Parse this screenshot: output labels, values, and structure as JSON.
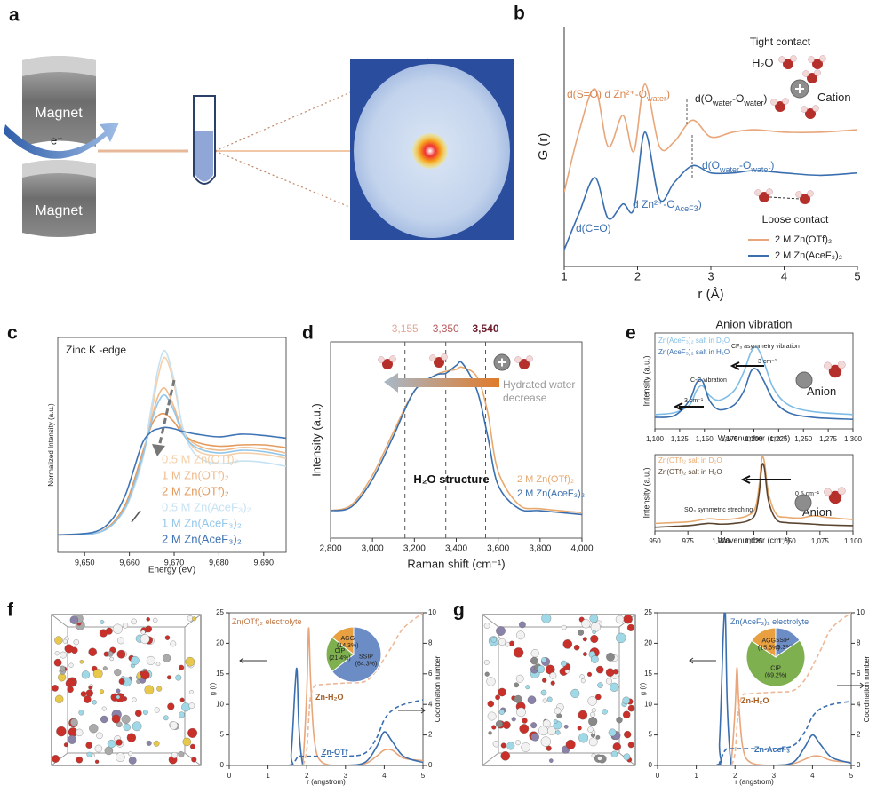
{
  "panel_labels": [
    "a",
    "b",
    "c",
    "d",
    "e",
    "f",
    "g"
  ],
  "panel_a": {
    "magnet_top": "Magnet",
    "magnet_bottom": "Magnet",
    "electron": "e⁻"
  },
  "chart_data": [
    {
      "type": "line",
      "xlabel": "r (Å)",
      "ylabel": "G (r)",
      "x": [
        1.0,
        1.2,
        1.42,
        1.6,
        1.8,
        1.95,
        2.1,
        2.3,
        2.5,
        2.75,
        3.0,
        3.3,
        3.6,
        4.0,
        4.5,
        5.0
      ],
      "xlim": [
        1,
        5
      ],
      "xticks": [
        1,
        2,
        3,
        4,
        5
      ],
      "ylim": [
        0,
        10
      ],
      "legend": {
        "loc": "lower right",
        "style": "line"
      },
      "series": [
        {
          "name": "2 M Zn(OTf)₂",
          "color": "#e8a67a",
          "values": [
            3.1,
            5.6,
            7.4,
            5.0,
            6.3,
            4.8,
            7.6,
            5.0,
            5.2,
            6.1,
            5.4,
            5.6,
            5.7,
            5.6,
            5.6,
            5.7
          ]
        },
        {
          "name": "2 M Zn(AceF₃)₂",
          "color": "#3a6faf",
          "values": [
            0.7,
            2.2,
            3.7,
            2.0,
            2.6,
            2.4,
            5.6,
            2.8,
            3.5,
            4.2,
            3.9,
            3.9,
            4.0,
            3.9,
            3.8,
            3.9
          ]
        }
      ],
      "annotations": [
        [
          "Tight contact"
        ],
        [
          "H₂O"
        ],
        [
          "Cation"
        ],
        [
          "d(S=O)  d  Zn²⁺-O",
          "water",
          ")"
        ],
        [
          "d(O",
          "water",
          "-O",
          "water",
          ")"
        ],
        [
          "d(O",
          "water",
          "-O",
          "water",
          ")"
        ],
        [
          "d  Zn²⁺-O",
          "AceF3",
          ")"
        ],
        [
          "d(C=O)"
        ],
        [
          "Loose contact"
        ]
      ]
    },
    {
      "type": "line",
      "xlabel": "Energy (eV)",
      "ylabel": "Normalized Intensity (a.u.)",
      "x": [
        9644,
        9652,
        9656,
        9659,
        9661,
        9663,
        9665,
        9666.5,
        9668,
        9670,
        9672,
        9675,
        9680,
        9685,
        9690,
        9695
      ],
      "xlim": [
        9644,
        9695
      ],
      "xticks": [
        {
          "value": 9650,
          "label": "9,650"
        },
        {
          "value": 9660,
          "label": "9,660"
        },
        {
          "value": 9670,
          "label": "9,670"
        },
        {
          "value": 9680,
          "label": "9,680"
        },
        {
          "value": 9690,
          "label": "9,690"
        }
      ],
      "ylim": [
        0,
        1.6
      ],
      "legend": {
        "loc": "lower left",
        "style": "text"
      },
      "series": [
        {
          "name": "0.5 M Zn(OTf)₂",
          "color": "#f4cfa8",
          "values": [
            0.13,
            0.14,
            0.2,
            0.32,
            0.48,
            0.7,
            1.05,
            1.32,
            1.45,
            1.25,
            0.92,
            0.76,
            0.72,
            0.74,
            0.73,
            0.7
          ]
        },
        {
          "name": "1 M Zn(OTf)₂",
          "color": "#f0b98a",
          "values": [
            0.13,
            0.14,
            0.2,
            0.33,
            0.5,
            0.72,
            1.0,
            1.17,
            1.22,
            1.08,
            0.9,
            0.8,
            0.76,
            0.78,
            0.77,
            0.74
          ]
        },
        {
          "name": "2 M Zn(OTf)₂",
          "color": "#e39a5d",
          "values": [
            0.13,
            0.14,
            0.21,
            0.35,
            0.53,
            0.75,
            0.95,
            1.02,
            1.03,
            0.97,
            0.88,
            0.82,
            0.79,
            0.8,
            0.8,
            0.78
          ]
        },
        {
          "name": "0.5 M Zn(AceF₃)₂",
          "color": "#c6e2f3",
          "values": [
            0.13,
            0.14,
            0.2,
            0.32,
            0.48,
            0.7,
            1.1,
            1.38,
            1.5,
            1.28,
            0.92,
            0.72,
            0.66,
            0.68,
            0.67,
            0.64
          ]
        },
        {
          "name": "1 M Zn(AceF₃)₂",
          "color": "#92c7ea",
          "values": [
            0.13,
            0.14,
            0.2,
            0.33,
            0.5,
            0.72,
            0.98,
            1.12,
            1.17,
            1.05,
            0.88,
            0.78,
            0.74,
            0.76,
            0.75,
            0.72
          ]
        },
        {
          "name": "2 M Zn(AceF₃)₂",
          "color": "#3f74b5",
          "values": [
            0.13,
            0.15,
            0.24,
            0.42,
            0.62,
            0.82,
            0.9,
            0.92,
            0.93,
            0.92,
            0.9,
            0.88,
            0.86,
            0.88,
            0.87,
            0.85
          ]
        }
      ],
      "annotations": [
        [
          "Zinc K -edge"
        ]
      ]
    },
    {
      "type": "line",
      "xlabel": "Raman shift (cm⁻¹)",
      "ylabel": "Intensity (a.u.)",
      "x": [
        2800,
        2900,
        3000,
        3100,
        3200,
        3300,
        3350,
        3400,
        3430,
        3500,
        3550,
        3600,
        3700,
        3800,
        4000
      ],
      "xlim": [
        2800,
        4000
      ],
      "xticks": [
        {
          "value": 2800,
          "label": "2,800"
        },
        {
          "value": 3000,
          "label": "3,000"
        },
        {
          "value": 3200,
          "label": "3,200"
        },
        {
          "value": 3400,
          "label": "3,400"
        },
        {
          "value": 3600,
          "label": "3,600"
        },
        {
          "value": 3800,
          "label": "3,800"
        },
        {
          "value": 4000,
          "label": "4,000"
        }
      ],
      "ylim": [
        0,
        1
      ],
      "vlines": [
        {
          "value": 3155,
          "label": "3,155",
          "color": "#dba796"
        },
        {
          "value": 3350,
          "label": "3,350",
          "color": "#b85a5a"
        },
        {
          "value": 3540,
          "label": "3,540",
          "color": "#6e1e2e"
        }
      ],
      "legend": {
        "loc": "lower right",
        "style": "text"
      },
      "series": [
        {
          "name": "2 M Zn(OTf)₂",
          "color": "#e8a96f",
          "values": [
            0.14,
            0.17,
            0.32,
            0.54,
            0.75,
            0.83,
            0.85,
            0.86,
            0.87,
            0.82,
            0.64,
            0.34,
            0.17,
            0.15,
            0.13
          ]
        },
        {
          "name": "2 M Zn(AceF₃)₂",
          "color": "#3a6faf",
          "values": [
            0.14,
            0.16,
            0.3,
            0.52,
            0.75,
            0.83,
            0.84,
            0.88,
            0.89,
            0.75,
            0.52,
            0.27,
            0.15,
            0.14,
            0.12
          ]
        }
      ],
      "annotations": [
        [
          "Hydrated water"
        ],
        [
          "decrease"
        ],
        [
          "H₂O structure"
        ]
      ]
    },
    {
      "type": "line",
      "title": "Anion vibration",
      "xlabel": "Wavenumber (cm⁻¹)",
      "ylabel": "Intensity (a.u.)",
      "x": [
        1100,
        1120,
        1135,
        1142,
        1148,
        1155,
        1165,
        1180,
        1190,
        1197,
        1203,
        1210,
        1220,
        1235,
        1260,
        1300
      ],
      "xlim": [
        1100,
        1300
      ],
      "xticks": [
        {
          "value": 1100,
          "label": "1,100"
        },
        {
          "value": 1125,
          "label": "1,125"
        },
        {
          "value": 1150,
          "label": "1,150"
        },
        {
          "value": 1175,
          "label": "1,175"
        },
        {
          "value": 1200,
          "label": "1,200"
        },
        {
          "value": 1225,
          "label": "1,225"
        },
        {
          "value": 1250,
          "label": "1,250"
        },
        {
          "value": 1275,
          "label": "1,275"
        },
        {
          "value": 1300,
          "label": "1,300"
        }
      ],
      "ylim": [
        0,
        1
      ],
      "legend": {
        "loc": "upper left",
        "style": "text"
      },
      "series": [
        {
          "name": "Zn(AceF₃)₂ salt in D₂O",
          "color": "#7fbde6",
          "values": [
            0.15,
            0.17,
            0.25,
            0.4,
            0.45,
            0.35,
            0.3,
            0.4,
            0.6,
            0.8,
            0.85,
            0.7,
            0.42,
            0.25,
            0.18,
            0.15
          ]
        },
        {
          "name": "Zn(AceF₃)₂ salt in H₂O",
          "color": "#3a6faf",
          "values": [
            0.12,
            0.14,
            0.3,
            0.48,
            0.5,
            0.3,
            0.2,
            0.25,
            0.4,
            0.6,
            0.62,
            0.5,
            0.3,
            0.17,
            0.12,
            0.1
          ]
        }
      ],
      "annotations": [
        [
          "CF₃ asymmetry vibration"
        ],
        [
          "3 cm⁻¹"
        ],
        [
          "C-C vibration"
        ],
        [
          "3 cm⁻¹"
        ],
        [
          "Anion"
        ]
      ]
    },
    {
      "type": "line",
      "xlabel": "Wavenumber (cm⁻¹)",
      "ylabel": "Intensity (a.u.)",
      "x": [
        950,
        975,
        990,
        1000,
        1010,
        1020,
        1026,
        1029,
        1031,
        1033,
        1036,
        1042,
        1050,
        1060,
        1070,
        1080,
        1100
      ],
      "xlim": [
        950,
        1100
      ],
      "xticks": [
        950,
        975,
        {
          "value": 1000,
          "label": "1,000"
        },
        {
          "value": 1025,
          "label": "1,025"
        },
        {
          "value": 1050,
          "label": "1,050"
        },
        {
          "value": 1075,
          "label": "1,075"
        },
        {
          "value": 1100,
          "label": "1,100"
        }
      ],
      "ylim": [
        0,
        1
      ],
      "legend": {
        "loc": "upper left",
        "style": "text"
      },
      "series": [
        {
          "name": "Zn(OTf)₂ salt in D₂O",
          "color": "#e8a96f",
          "values": [
            0.1,
            0.12,
            0.16,
            0.15,
            0.16,
            0.2,
            0.3,
            0.6,
            0.95,
            0.9,
            0.5,
            0.22,
            0.18,
            0.17,
            0.2,
            0.18,
            0.15
          ]
        },
        {
          "name": "Zn(OTf)₂ salt in H₂O",
          "color": "#5a4530",
          "values": [
            0.05,
            0.07,
            0.1,
            0.09,
            0.1,
            0.13,
            0.22,
            0.5,
            0.85,
            0.82,
            0.4,
            0.15,
            0.11,
            0.1,
            0.09,
            0.08,
            0.07
          ]
        }
      ],
      "annotations": [
        [
          "0.5 cm⁻¹"
        ],
        [
          "SO₃  symmetric streching"
        ],
        [
          "Anion"
        ]
      ]
    },
    {
      "type": "line",
      "xlabel": "r (angstrom)",
      "ylabel": "g (r)",
      "y2label": "Coordination number",
      "x": [
        0,
        1.5,
        1.6,
        1.7,
        1.75,
        1.8,
        1.9,
        2.0,
        2.05,
        2.1,
        2.2,
        2.4,
        3.0,
        3.5,
        3.8,
        4.0,
        4.2,
        4.5,
        5.0
      ],
      "xlim": [
        0,
        5
      ],
      "xticks": [
        0,
        1,
        2,
        3,
        4,
        5
      ],
      "ylim": [
        0,
        25
      ],
      "yticks": [
        0,
        5,
        10,
        15,
        20,
        25
      ],
      "y2lim": [
        0,
        10
      ],
      "y2ticks": [
        0,
        2,
        4,
        6,
        8,
        10
      ],
      "series": [
        {
          "color": "#e8a67a",
          "values": [
            0,
            0,
            0,
            0,
            0,
            0,
            0.5,
            12,
            22.5,
            14,
            4,
            0.5,
            0,
            0.3,
            1.5,
            2.5,
            2.5,
            1.2,
            0.8
          ]
        },
        {
          "color": "#3a6faf",
          "values": [
            0,
            0,
            2,
            13,
            15.5,
            6,
            0,
            0,
            0,
            0,
            0,
            0,
            0,
            0.5,
            3,
            5.5,
            4,
            1.5,
            0.5
          ]
        },
        {
          "color": "#edb898",
          "axis": "y2",
          "linestyle": "dashed",
          "values": [
            0,
            0,
            0,
            0,
            0,
            0,
            0,
            1,
            3,
            4.5,
            5.2,
            5.3,
            5.4,
            5.5,
            6.2,
            7,
            7.8,
            9,
            10
          ]
        },
        {
          "color": "#3a6faf",
          "axis": "y2",
          "linestyle": "dashed",
          "values": [
            0,
            0,
            0,
            0.3,
            0.5,
            0.6,
            0.6,
            0.6,
            0.6,
            0.6,
            0.6,
            0.6,
            0.6,
            0.8,
            1.8,
            3,
            3.6,
            4,
            4.3
          ]
        }
      ],
      "annotations": [
        [
          "Zn(OTf)₂ electrolyte"
        ],
        [
          "Zn-H₂O"
        ],
        [
          "Zn-OTf"
        ]
      ]
    },
    {
      "type": "pie",
      "categories": [
        "SSIP",
        "CIP",
        "AGG"
      ],
      "values": [
        64.3,
        21.4,
        14.3
      ],
      "value_labels": [
        "(64.3%)",
        "(21.4%)",
        "(14.3%)"
      ],
      "colors": [
        "#6b8cc4",
        "#7fb04f",
        "#e8a040"
      ]
    },
    {
      "type": "line",
      "xlabel": "r (angstrom)",
      "ylabel": "g (r)",
      "y2label": "Coordination number",
      "x": [
        0,
        1.5,
        1.6,
        1.7,
        1.75,
        1.8,
        1.9,
        2.0,
        2.05,
        2.1,
        2.2,
        2.4,
        3.0,
        3.5,
        3.8,
        4.0,
        4.2,
        4.5,
        5.0
      ],
      "xlim": [
        0,
        5
      ],
      "xticks": [
        0,
        1,
        2,
        3,
        4,
        5
      ],
      "ylim": [
        0,
        25
      ],
      "yticks": [
        0,
        5,
        10,
        15,
        20,
        25
      ],
      "y2lim": [
        0,
        10
      ],
      "y2ticks": [
        0,
        2,
        4,
        6,
        8,
        10
      ],
      "series": [
        {
          "color": "#e8a67a",
          "values": [
            0,
            0,
            0,
            0,
            0,
            0,
            0.5,
            9,
            16,
            10,
            3,
            0.5,
            0,
            0.3,
            1,
            1.5,
            1.5,
            0.8,
            0.5
          ]
        },
        {
          "color": "#3a6faf",
          "values": [
            0,
            0,
            4,
            22,
            25,
            10,
            0,
            0,
            0,
            0,
            0,
            0,
            0,
            0.5,
            3,
            5,
            3.5,
            1.3,
            0.4
          ]
        },
        {
          "color": "#edb898",
          "axis": "y2",
          "linestyle": "dashed",
          "values": [
            0,
            0,
            0,
            0,
            0,
            0,
            0,
            0.8,
            2.5,
            3.8,
            4.6,
            4.7,
            4.8,
            4.9,
            5.6,
            6.5,
            7.5,
            9,
            10
          ]
        },
        {
          "color": "#3a6faf",
          "axis": "y2",
          "linestyle": "dashed",
          "values": [
            0,
            0,
            0.2,
            0.8,
            1,
            1.1,
            1.1,
            1.1,
            1.1,
            1.1,
            1.1,
            1.1,
            1.1,
            1.3,
            2.2,
            3.2,
            3.7,
            4,
            4.2
          ]
        }
      ],
      "annotations": [
        [
          "Zn(AceF₃)₂ electrolyte"
        ],
        [
          "Zn-H₂O"
        ],
        [
          "Zn-AceF₃"
        ]
      ]
    },
    {
      "type": "pie",
      "categories": [
        "SSIP",
        "CIP",
        "AGG"
      ],
      "values": [
        15.3,
        69.2,
        15.5
      ],
      "value_labels": [
        "(15.3%)",
        "(69.2%)",
        "(15.5%)"
      ],
      "colors": [
        "#6b8cc4",
        "#7fb04f",
        "#e8a040"
      ]
    }
  ]
}
